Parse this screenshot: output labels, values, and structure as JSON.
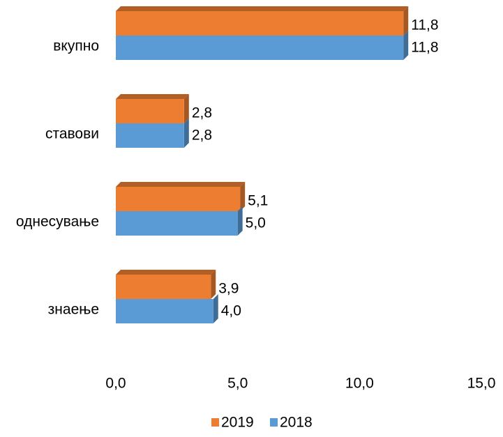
{
  "chart_data": {
    "type": "bar",
    "orientation": "horizontal",
    "categories": [
      "вкупно",
      "ставови",
      "однесување",
      "знаење"
    ],
    "series": [
      {
        "name": "2019",
        "color": "#ed7d31",
        "values": [
          11.8,
          2.8,
          5.1,
          3.9
        ],
        "value_labels": [
          "11,8",
          "2,8",
          "5,1",
          "3,9"
        ]
      },
      {
        "name": "2018",
        "color": "#5b9bd5",
        "values": [
          11.8,
          2.8,
          5.0,
          4.0
        ],
        "value_labels": [
          "11,8",
          "2,8",
          "5,0",
          "4,0"
        ]
      }
    ],
    "xlim": [
      0,
      15
    ],
    "xticks": [
      {
        "value": 0,
        "label": "0,0"
      },
      {
        "value": 5,
        "label": "5,0"
      },
      {
        "value": 10,
        "label": "10,0"
      },
      {
        "value": 15,
        "label": "15,0"
      }
    ],
    "grid": false,
    "legend": "bottom"
  }
}
